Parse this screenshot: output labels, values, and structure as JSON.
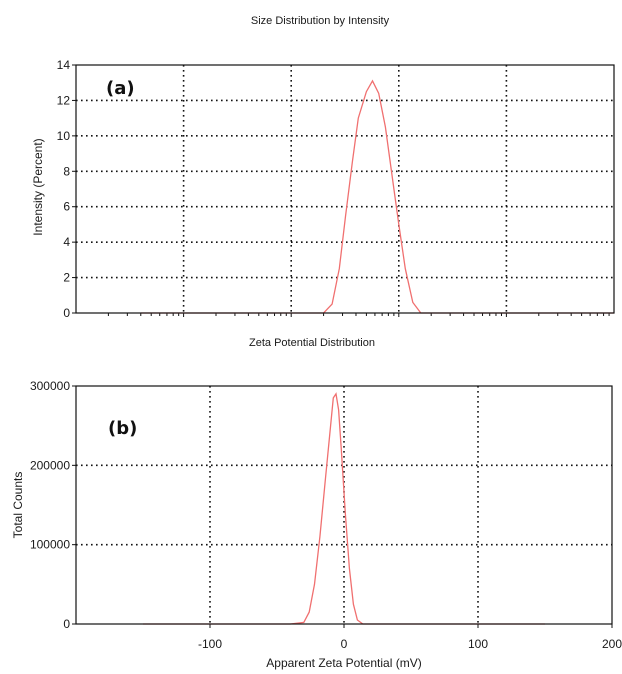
{
  "colors": {
    "series": "#f07070",
    "axis": "#111111"
  },
  "chart_data": [
    {
      "type": "line",
      "panel_label": "(a)",
      "title": "Size Distribution by Intensity",
      "xlabel": "",
      "ylabel": "Intensity (Percent)",
      "xscale": "log",
      "xlim": [
        0.1,
        10000
      ],
      "ylim": [
        0,
        14
      ],
      "yticks": [
        0,
        2,
        4,
        6,
        8,
        10,
        12,
        14
      ],
      "ytick_labels": [
        "0",
        "2",
        "4",
        "6",
        "8",
        "10",
        "12",
        "14"
      ],
      "xticks": [
        1,
        10,
        100,
        1000
      ],
      "xtick_labels": [],
      "grid": true,
      "series": [
        {
          "x": [
            0.4,
            10,
            20,
            24,
            28,
            32,
            37,
            42,
            50,
            57,
            65,
            75,
            90,
            100,
            115,
            135,
            160,
            200,
            10000
          ],
          "y": [
            0,
            0,
            0,
            0.5,
            2.5,
            5.5,
            8.5,
            11.0,
            12.5,
            13.1,
            12.4,
            10.5,
            7.0,
            5.0,
            2.5,
            0.6,
            0,
            0,
            0
          ]
        }
      ]
    },
    {
      "type": "line",
      "panel_label": "(b)",
      "title": "Zeta Potential Distribution",
      "xlabel": "Apparent Zeta Potential (mV)",
      "ylabel": "Total Counts",
      "xlim": [
        -200,
        200
      ],
      "ylim": [
        0,
        300000
      ],
      "xticks": [
        -100,
        0,
        100,
        200
      ],
      "xtick_labels": [
        "-100",
        "0",
        "100",
        "200"
      ],
      "yticks": [
        0,
        100000,
        200000,
        300000
      ],
      "ytick_labels": [
        "0",
        "100000",
        "200000",
        "300000"
      ],
      "grid": true,
      "series": [
        {
          "x": [
            -150,
            -40,
            -30,
            -26,
            -22,
            -18,
            -14,
            -10,
            -8,
            -6,
            -4,
            -2,
            1,
            4,
            7,
            10,
            14,
            150
          ],
          "y": [
            0,
            0,
            2000,
            15000,
            50000,
            110000,
            180000,
            250000,
            285000,
            290000,
            270000,
            220000,
            140000,
            70000,
            25000,
            5000,
            0,
            0
          ]
        }
      ]
    }
  ]
}
